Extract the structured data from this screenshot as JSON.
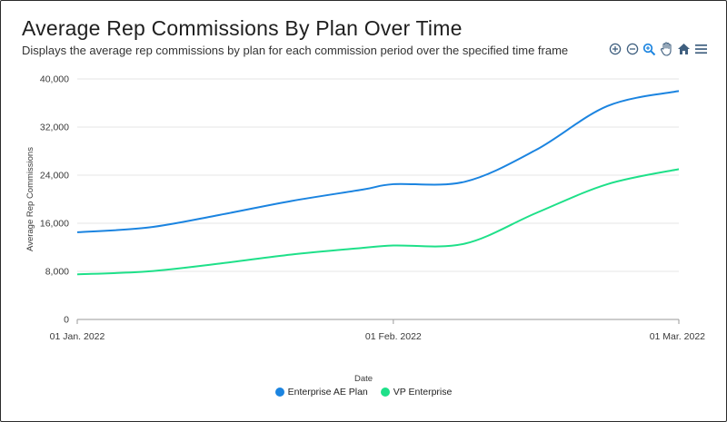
{
  "header": {
    "title": "Average Rep Commissions By Plan Over Time",
    "subtitle": "Displays the average rep commissions by plan for each commission period over the specified time frame"
  },
  "toolbar": {
    "icons": [
      "zoom-in-icon",
      "zoom-out-icon",
      "magnifier-icon",
      "pan-hand-icon",
      "home-icon",
      "menu-icon"
    ],
    "color": "#3f5f7f"
  },
  "chart_data": {
    "type": "line",
    "x": [
      "2022-01-01",
      "2022-01-08",
      "2022-01-15",
      "2022-01-22",
      "2022-01-29",
      "2022-02-01",
      "2022-02-08",
      "2022-02-15",
      "2022-02-22",
      "2022-03-01"
    ],
    "x_ticks": [
      "01 Jan. 2022",
      "01 Feb. 2022",
      "01 Mar. 2022"
    ],
    "xlabel": "Date",
    "ylabel": "Average Rep Commissions",
    "ylim": [
      0,
      40000
    ],
    "y_ticks": [
      "0",
      "8,000",
      "16,000",
      "24,000",
      "32,000",
      "40,000"
    ],
    "grid": "horizontal",
    "legend": "bottom-center",
    "series": [
      {
        "name": "Enterprise AE Plan",
        "color": "#1b84e0",
        "values": [
          14500,
          15300,
          17400,
          19700,
          21600,
          22500,
          22900,
          28200,
          35500,
          38000
        ]
      },
      {
        "name": "VP Enterprise",
        "color": "#1ee089",
        "values": [
          7500,
          8000,
          9300,
          10800,
          11900,
          12300,
          12600,
          17700,
          22500,
          25000
        ]
      }
    ]
  }
}
